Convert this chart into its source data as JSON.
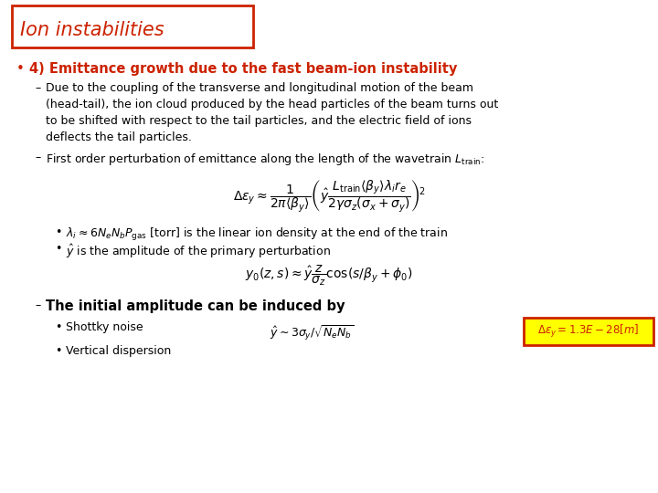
{
  "title": "Ion instabilities",
  "title_color": "#cc2200",
  "title_box_edge_color": "#cc2200",
  "background_color": "#ffffff",
  "bullet_color": "#cc2200",
  "text_color": "#000000",
  "main_bullet": "4) Emittance growth due to the fast beam-ion instability",
  "sub1_line1": "Due to the coupling of the transverse and longitudinal motion of the beam",
  "sub1_line2": "(head-tail), the ion cloud produced by the head particles of the beam turns out",
  "sub1_line3": "to be shifted with respect to the tail particles, and the electric field of ions",
  "sub1_line4": "deflects the tail particles.",
  "sub2": "First order perturbation of emittance along the length of the wavetrain $L_{\\mathrm{train}}$:",
  "eq1": "$\\Delta\\varepsilon_y \\approx \\dfrac{1}{2\\pi\\langle\\beta_y\\rangle}\\left(\\hat{y}\\dfrac{L_{\\mathrm{train}}\\langle\\beta_y\\rangle\\lambda_i r_e}{2\\gamma\\sigma_z(\\sigma_x+\\sigma_y)}\\right)^{\\!2}$",
  "bullet2_line1": "$\\lambda_i \\approx 6N_eN_bP_{\\mathrm{gas}}$ [torr] is the linear ion density at the end of the train",
  "bullet2_line2": "$\\hat{y}$ is the amplitude of the primary perturbation",
  "eq2": "$y_0(z,s) \\approx \\hat{y}\\dfrac{z}{\\sigma_z}\\cos(s/\\beta_y + \\phi_0)$",
  "sub3": "The initial amplitude can be induced by",
  "bullet3_line1": "Shottky noise",
  "bullet3_formula": "$\\hat{y} \\sim 3\\sigma_y/\\sqrt{N_e N_b}$",
  "bullet3_line2": "Vertical dispersion",
  "box_text": "$\\Delta\\varepsilon_y=1.3E-28[m]$",
  "box_bg": "#ffff00",
  "box_edge": "#cc2200",
  "fig_width": 7.2,
  "fig_height": 5.4,
  "dpi": 100
}
